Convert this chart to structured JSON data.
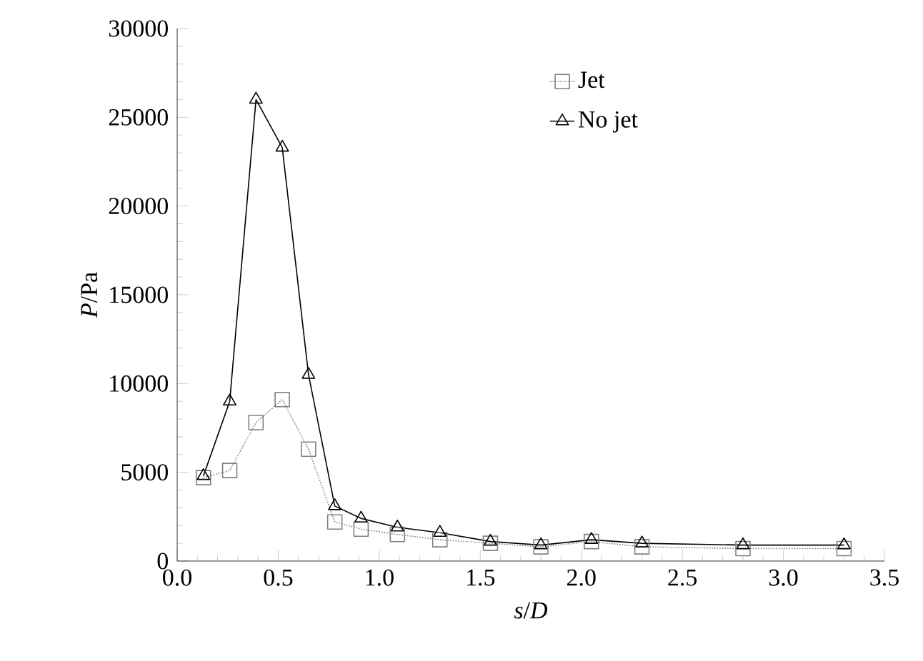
{
  "chart_data": {
    "type": "line",
    "xlabel": "*s*/*D*",
    "ylabel": "*P*/Pa",
    "xlim": [
      0,
      3.5
    ],
    "xticks": [
      {
        "value": 0,
        "label": "0.0"
      },
      {
        "value": 0.5,
        "label": "0.5"
      },
      {
        "value": 1,
        "label": "1.0"
      },
      {
        "value": 1.5,
        "label": "1.5"
      },
      {
        "value": 2,
        "label": "2.0"
      },
      {
        "value": 2.5,
        "label": "2.5"
      },
      {
        "value": 3,
        "label": "3.0"
      },
      {
        "value": 3.5,
        "label": "3.5"
      }
    ],
    "ylim": [
      0,
      30000
    ],
    "yticks": [
      0,
      5000,
      10000,
      15000,
      20000,
      25000,
      30000
    ],
    "grid": false,
    "legend": "top right",
    "series": [
      {
        "name": "Jet",
        "color": "#808080",
        "marker": "square",
        "line_style": "dotted",
        "x": [
          0.13,
          0.26,
          0.39,
          0.52,
          0.65,
          0.78,
          0.91,
          1.09,
          1.3,
          1.55,
          1.8,
          2.05,
          2.3,
          2.8,
          3.3
        ],
        "values": [
          4700,
          5100,
          7800,
          9100,
          6300,
          2200,
          1800,
          1500,
          1200,
          1000,
          800,
          1100,
          800,
          700,
          700
        ]
      },
      {
        "name": "No jet",
        "color": "#000000",
        "marker": "triangle",
        "line_style": "solid",
        "x": [
          0.13,
          0.26,
          0.39,
          0.52,
          0.65,
          0.78,
          0.91,
          1.09,
          1.3,
          1.55,
          1.8,
          2.05,
          2.3,
          2.8,
          3.3
        ],
        "values": [
          4800,
          9000,
          26000,
          23300,
          10500,
          3100,
          2400,
          1900,
          1600,
          1100,
          900,
          1200,
          1000,
          900,
          900
        ]
      }
    ]
  }
}
